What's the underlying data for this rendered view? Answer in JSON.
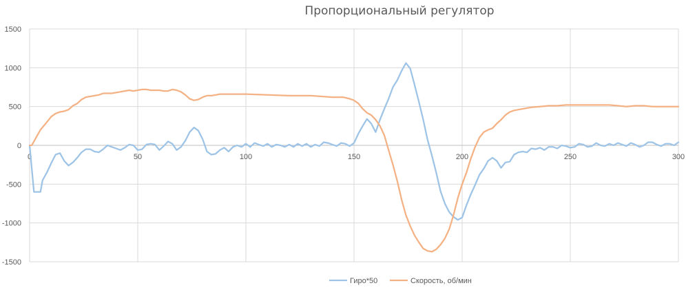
{
  "chart_data": {
    "type": "line",
    "title": "Пропорциональный регулятор",
    "xlabel": "",
    "ylabel": "",
    "xlim": [
      0,
      300
    ],
    "ylim": [
      -1500,
      1500
    ],
    "xticks": [
      0,
      50,
      100,
      150,
      200,
      250,
      300
    ],
    "yticks": [
      -1500,
      -1000,
      -500,
      0,
      500,
      1000,
      1500
    ],
    "grid": true,
    "legend": "bottom",
    "series": [
      {
        "name": "Гиро*50",
        "color": "#9dc3e6",
        "points": [
          [
            0,
            0
          ],
          [
            2,
            -600
          ],
          [
            5,
            -600
          ],
          [
            6,
            -450
          ],
          [
            8,
            -350
          ],
          [
            10,
            -230
          ],
          [
            12,
            -120
          ],
          [
            14,
            -100
          ],
          [
            16,
            -200
          ],
          [
            18,
            -260
          ],
          [
            20,
            -220
          ],
          [
            22,
            -160
          ],
          [
            24,
            -90
          ],
          [
            26,
            -50
          ],
          [
            28,
            -50
          ],
          [
            30,
            -80
          ],
          [
            32,
            -90
          ],
          [
            34,
            -50
          ],
          [
            36,
            0
          ],
          [
            38,
            -20
          ],
          [
            40,
            -40
          ],
          [
            42,
            -60
          ],
          [
            44,
            -30
          ],
          [
            46,
            10
          ],
          [
            48,
            0
          ],
          [
            50,
            -60
          ],
          [
            52,
            -50
          ],
          [
            54,
            10
          ],
          [
            56,
            20
          ],
          [
            58,
            10
          ],
          [
            60,
            -60
          ],
          [
            62,
            -10
          ],
          [
            64,
            50
          ],
          [
            66,
            20
          ],
          [
            68,
            -60
          ],
          [
            70,
            -20
          ],
          [
            72,
            60
          ],
          [
            74,
            170
          ],
          [
            76,
            230
          ],
          [
            78,
            190
          ],
          [
            80,
            80
          ],
          [
            82,
            -80
          ],
          [
            84,
            -120
          ],
          [
            86,
            -110
          ],
          [
            88,
            -60
          ],
          [
            90,
            -30
          ],
          [
            92,
            -80
          ],
          [
            94,
            -20
          ],
          [
            96,
            0
          ],
          [
            98,
            -20
          ],
          [
            100,
            20
          ],
          [
            102,
            -20
          ],
          [
            104,
            30
          ],
          [
            106,
            10
          ],
          [
            108,
            -10
          ],
          [
            110,
            20
          ],
          [
            112,
            -20
          ],
          [
            114,
            10
          ],
          [
            116,
            0
          ],
          [
            118,
            -20
          ],
          [
            120,
            10
          ],
          [
            122,
            -20
          ],
          [
            124,
            20
          ],
          [
            126,
            -10
          ],
          [
            128,
            20
          ],
          [
            130,
            -20
          ],
          [
            132,
            10
          ],
          [
            134,
            -10
          ],
          [
            136,
            40
          ],
          [
            138,
            30
          ],
          [
            140,
            10
          ],
          [
            142,
            -10
          ],
          [
            144,
            30
          ],
          [
            146,
            20
          ],
          [
            148,
            -10
          ],
          [
            150,
            30
          ],
          [
            152,
            150
          ],
          [
            154,
            250
          ],
          [
            156,
            340
          ],
          [
            158,
            280
          ],
          [
            160,
            170
          ],
          [
            162,
            330
          ],
          [
            164,
            470
          ],
          [
            166,
            600
          ],
          [
            168,
            750
          ],
          [
            170,
            840
          ],
          [
            172,
            960
          ],
          [
            174,
            1060
          ],
          [
            176,
            990
          ],
          [
            178,
            780
          ],
          [
            180,
            560
          ],
          [
            182,
            330
          ],
          [
            184,
            70
          ],
          [
            186,
            -130
          ],
          [
            188,
            -350
          ],
          [
            190,
            -590
          ],
          [
            192,
            -750
          ],
          [
            194,
            -860
          ],
          [
            196,
            -920
          ],
          [
            198,
            -960
          ],
          [
            200,
            -930
          ],
          [
            202,
            -770
          ],
          [
            204,
            -630
          ],
          [
            206,
            -510
          ],
          [
            208,
            -380
          ],
          [
            210,
            -300
          ],
          [
            212,
            -200
          ],
          [
            214,
            -160
          ],
          [
            216,
            -200
          ],
          [
            218,
            -290
          ],
          [
            220,
            -220
          ],
          [
            222,
            -210
          ],
          [
            224,
            -120
          ],
          [
            226,
            -90
          ],
          [
            228,
            -80
          ],
          [
            230,
            -90
          ],
          [
            232,
            -40
          ],
          [
            234,
            -50
          ],
          [
            236,
            -30
          ],
          [
            238,
            -60
          ],
          [
            240,
            -20
          ],
          [
            242,
            -20
          ],
          [
            244,
            -40
          ],
          [
            246,
            0
          ],
          [
            248,
            -10
          ],
          [
            250,
            -30
          ],
          [
            252,
            -20
          ],
          [
            254,
            20
          ],
          [
            256,
            10
          ],
          [
            258,
            -20
          ],
          [
            260,
            -10
          ],
          [
            262,
            30
          ],
          [
            264,
            0
          ],
          [
            266,
            -10
          ],
          [
            268,
            20
          ],
          [
            270,
            0
          ],
          [
            272,
            30
          ],
          [
            274,
            10
          ],
          [
            276,
            -10
          ],
          [
            278,
            30
          ],
          [
            280,
            10
          ],
          [
            282,
            -20
          ],
          [
            284,
            0
          ],
          [
            286,
            40
          ],
          [
            288,
            40
          ],
          [
            290,
            10
          ],
          [
            292,
            -10
          ],
          [
            294,
            20
          ],
          [
            296,
            20
          ],
          [
            298,
            0
          ],
          [
            300,
            40
          ]
        ]
      },
      {
        "name": "Скорость, об/мин",
        "color": "#f4b183",
        "points": [
          [
            0,
            0
          ],
          [
            1,
            0
          ],
          [
            3,
            100
          ],
          [
            5,
            200
          ],
          [
            8,
            300
          ],
          [
            10,
            370
          ],
          [
            12,
            410
          ],
          [
            14,
            430
          ],
          [
            16,
            440
          ],
          [
            18,
            460
          ],
          [
            20,
            510
          ],
          [
            22,
            540
          ],
          [
            24,
            590
          ],
          [
            26,
            620
          ],
          [
            28,
            630
          ],
          [
            30,
            640
          ],
          [
            32,
            650
          ],
          [
            34,
            670
          ],
          [
            36,
            670
          ],
          [
            38,
            670
          ],
          [
            40,
            680
          ],
          [
            42,
            690
          ],
          [
            44,
            700
          ],
          [
            46,
            710
          ],
          [
            48,
            700
          ],
          [
            50,
            710
          ],
          [
            52,
            720
          ],
          [
            54,
            720
          ],
          [
            56,
            710
          ],
          [
            58,
            710
          ],
          [
            60,
            710
          ],
          [
            62,
            700
          ],
          [
            64,
            700
          ],
          [
            66,
            720
          ],
          [
            68,
            710
          ],
          [
            70,
            690
          ],
          [
            72,
            650
          ],
          [
            74,
            600
          ],
          [
            76,
            580
          ],
          [
            78,
            590
          ],
          [
            80,
            620
          ],
          [
            82,
            640
          ],
          [
            84,
            640
          ],
          [
            86,
            650
          ],
          [
            88,
            660
          ],
          [
            90,
            660
          ],
          [
            100,
            660
          ],
          [
            110,
            650
          ],
          [
            120,
            640
          ],
          [
            130,
            640
          ],
          [
            140,
            620
          ],
          [
            145,
            620
          ],
          [
            148,
            600
          ],
          [
            150,
            580
          ],
          [
            152,
            540
          ],
          [
            154,
            470
          ],
          [
            156,
            420
          ],
          [
            158,
            390
          ],
          [
            160,
            330
          ],
          [
            162,
            250
          ],
          [
            164,
            130
          ],
          [
            166,
            -60
          ],
          [
            168,
            -250
          ],
          [
            170,
            -460
          ],
          [
            172,
            -700
          ],
          [
            174,
            -900
          ],
          [
            176,
            -1040
          ],
          [
            178,
            -1160
          ],
          [
            180,
            -1250
          ],
          [
            182,
            -1330
          ],
          [
            184,
            -1360
          ],
          [
            186,
            -1370
          ],
          [
            188,
            -1340
          ],
          [
            190,
            -1280
          ],
          [
            192,
            -1200
          ],
          [
            194,
            -1080
          ],
          [
            196,
            -900
          ],
          [
            198,
            -680
          ],
          [
            200,
            -500
          ],
          [
            202,
            -350
          ],
          [
            204,
            -170
          ],
          [
            206,
            -20
          ],
          [
            208,
            100
          ],
          [
            210,
            170
          ],
          [
            212,
            200
          ],
          [
            214,
            220
          ],
          [
            216,
            280
          ],
          [
            218,
            330
          ],
          [
            220,
            390
          ],
          [
            222,
            430
          ],
          [
            224,
            450
          ],
          [
            226,
            460
          ],
          [
            228,
            470
          ],
          [
            230,
            480
          ],
          [
            232,
            490
          ],
          [
            236,
            500
          ],
          [
            240,
            510
          ],
          [
            244,
            510
          ],
          [
            248,
            520
          ],
          [
            252,
            520
          ],
          [
            256,
            520
          ],
          [
            260,
            520
          ],
          [
            264,
            520
          ],
          [
            268,
            520
          ],
          [
            272,
            510
          ],
          [
            276,
            500
          ],
          [
            280,
            510
          ],
          [
            284,
            510
          ],
          [
            288,
            500
          ],
          [
            292,
            500
          ],
          [
            296,
            500
          ],
          [
            300,
            500
          ]
        ]
      }
    ]
  }
}
